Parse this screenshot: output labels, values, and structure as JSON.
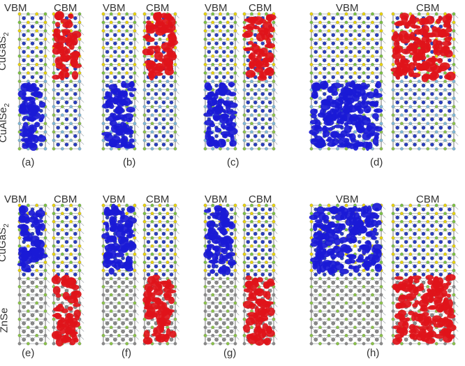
{
  "headers": {
    "vbm": "VBM",
    "cbm": "CBM"
  },
  "rows": [
    {
      "id": "top",
      "upper_material": {
        "base": "CuGaS",
        "subscript": "2"
      },
      "lower_material": {
        "base": "CuAlSe",
        "subscript": "2"
      },
      "panels": [
        {
          "label": "(a)",
          "interface": "middle",
          "vbm_region": "lower",
          "cbm_region": "upper"
        },
        {
          "label": "(b)",
          "interface": "middle",
          "vbm_region": "lower",
          "cbm_region": "upper"
        },
        {
          "label": "(c)",
          "interface": "middle",
          "vbm_region": "lower",
          "cbm_region": "upper"
        },
        {
          "label": "(d)",
          "interface": "middle",
          "vbm_region": "lower",
          "cbm_region": "upper"
        }
      ]
    },
    {
      "id": "bottom",
      "upper_material": {
        "base": "CuGaS",
        "subscript": "2"
      },
      "lower_material": {
        "base": "ZnSe",
        "subscript": ""
      },
      "panels": [
        {
          "label": "(e)",
          "interface": "middle",
          "vbm_region": "upper",
          "cbm_region": "lower"
        },
        {
          "label": "(f)",
          "interface": "middle",
          "vbm_region": "upper",
          "cbm_region": "lower"
        },
        {
          "label": "(g)",
          "interface": "middle",
          "vbm_region": "upper",
          "cbm_region": "lower"
        },
        {
          "label": "(h)",
          "interface": "middle",
          "vbm_region": "upper",
          "cbm_region": "lower"
        }
      ]
    }
  ],
  "colors": {
    "vbm_isosurface": "#1a1ad6",
    "cbm_isosurface": "#e0141a",
    "bond": "#9aa0a6",
    "atom_s": "#e8d40a",
    "atom_ga": "#7cc242",
    "atom_cu": "#2a3fbf",
    "atom_zn": "#8a8a8a",
    "atom_se": "#8bc34a",
    "atom_al": "#7fb8d8"
  }
}
